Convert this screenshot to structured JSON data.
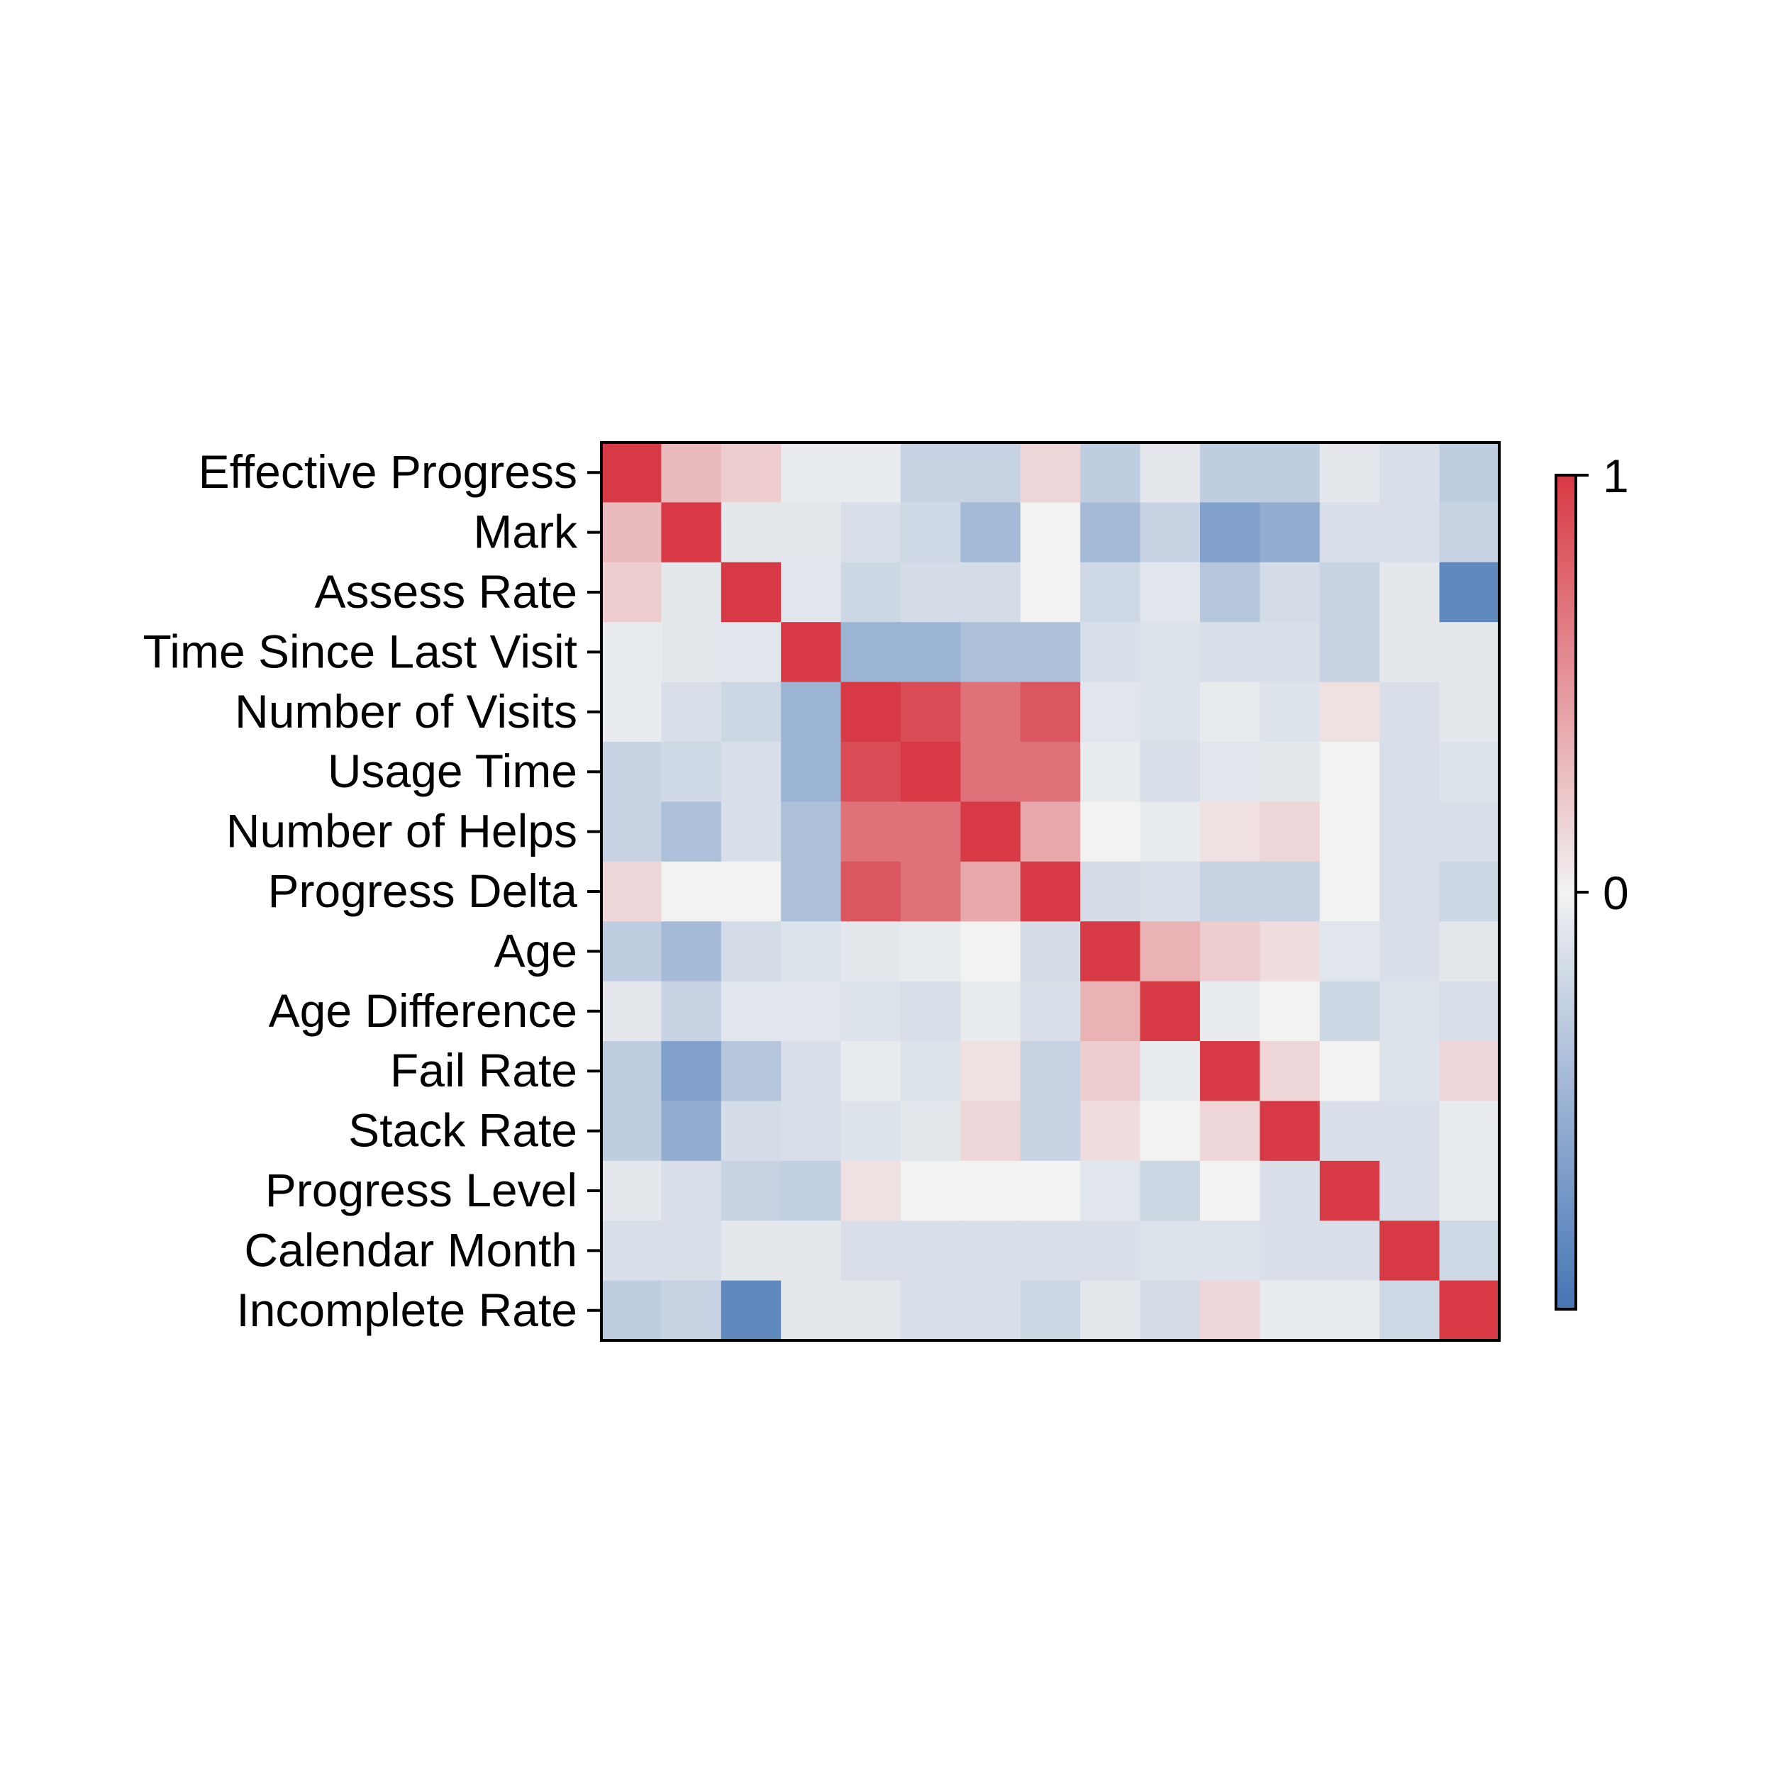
{
  "chart_data": {
    "type": "heatmap",
    "title": "",
    "xlabel": "",
    "ylabel": "",
    "row_labels": [
      "Effective Progress",
      "Mark",
      "Assess Rate",
      "Time Since Last Visit",
      "Number of Visits",
      "Usage Time",
      "Number of Helps",
      "Progress Delta",
      "Age",
      "Age Difference",
      "Fail Rate",
      "Stack Rate",
      "Progress Level",
      "Calendar Month",
      "Incomplete Rate"
    ],
    "col_labels": [],
    "values": [
      [
        1.0,
        0.3,
        0.2,
        -0.05,
        -0.05,
        -0.25,
        -0.25,
        0.15,
        -0.3,
        -0.08,
        -0.3,
        -0.3,
        -0.08,
        -0.15,
        -0.3
      ],
      [
        0.3,
        1.0,
        -0.08,
        -0.08,
        -0.15,
        -0.2,
        -0.45,
        0.0,
        -0.45,
        -0.25,
        -0.65,
        -0.55,
        -0.15,
        -0.15,
        -0.25
      ],
      [
        0.2,
        -0.08,
        1.0,
        -0.1,
        -0.22,
        -0.18,
        -0.18,
        0.0,
        -0.2,
        -0.1,
        -0.35,
        -0.18,
        -0.25,
        -0.08,
        -0.85
      ],
      [
        -0.05,
        -0.08,
        -0.1,
        1.0,
        -0.5,
        -0.5,
        -0.4,
        -0.4,
        -0.15,
        -0.12,
        -0.15,
        -0.15,
        -0.25,
        -0.08,
        -0.08
      ],
      [
        -0.05,
        -0.15,
        -0.22,
        -0.5,
        1.0,
        0.9,
        0.7,
        0.85,
        -0.1,
        -0.12,
        -0.06,
        -0.12,
        0.1,
        -0.15,
        -0.08
      ],
      [
        -0.25,
        -0.2,
        -0.15,
        -0.5,
        0.9,
        1.0,
        0.7,
        0.7,
        -0.06,
        -0.15,
        -0.1,
        -0.08,
        0.0,
        -0.15,
        -0.12
      ],
      [
        -0.25,
        -0.4,
        -0.15,
        -0.4,
        0.7,
        0.7,
        1.0,
        0.4,
        0.0,
        -0.06,
        0.1,
        0.15,
        0.0,
        -0.15,
        -0.15
      ],
      [
        0.15,
        0.0,
        0.0,
        -0.4,
        0.85,
        0.7,
        0.4,
        1.0,
        -0.18,
        -0.15,
        -0.25,
        -0.25,
        0.0,
        -0.15,
        -0.22
      ],
      [
        -0.3,
        -0.45,
        -0.18,
        -0.12,
        -0.08,
        -0.06,
        0.0,
        -0.18,
        1.0,
        0.35,
        0.2,
        0.12,
        -0.1,
        -0.15,
        -0.08
      ],
      [
        -0.08,
        -0.25,
        -0.1,
        -0.1,
        -0.12,
        -0.15,
        -0.06,
        -0.15,
        0.35,
        1.0,
        -0.06,
        0.0,
        -0.22,
        -0.12,
        -0.15
      ],
      [
        -0.3,
        -0.65,
        -0.35,
        -0.15,
        -0.06,
        -0.12,
        0.1,
        -0.25,
        0.2,
        -0.06,
        1.0,
        0.15,
        0.0,
        -0.12,
        0.15
      ],
      [
        -0.3,
        -0.55,
        -0.18,
        -0.15,
        -0.12,
        -0.08,
        0.15,
        -0.25,
        0.12,
        0.0,
        0.15,
        1.0,
        -0.15,
        -0.15,
        -0.06
      ],
      [
        -0.08,
        -0.15,
        -0.25,
        -0.28,
        0.1,
        0.0,
        0.0,
        0.0,
        -0.1,
        -0.22,
        0.0,
        -0.15,
        1.0,
        -0.15,
        -0.06
      ],
      [
        -0.15,
        -0.15,
        -0.08,
        -0.08,
        -0.15,
        -0.15,
        -0.15,
        -0.15,
        -0.15,
        -0.12,
        -0.12,
        -0.15,
        -0.15,
        1.0,
        -0.2
      ],
      [
        -0.3,
        -0.25,
        -0.85,
        -0.08,
        -0.08,
        -0.15,
        -0.15,
        -0.22,
        -0.08,
        -0.18,
        0.15,
        -0.06,
        -0.06,
        -0.2,
        1.0
      ]
    ],
    "vmin": -1,
    "vmax": 1,
    "colorbar": {
      "ticks": [
        1,
        0
      ],
      "tick_labels": [
        "1",
        "0"
      ]
    },
    "colors": {
      "negative": "#4575b4",
      "neutral": "#f2f2f2",
      "positive": "#d73a44"
    },
    "grid": false,
    "legend": "colorbar-right"
  }
}
